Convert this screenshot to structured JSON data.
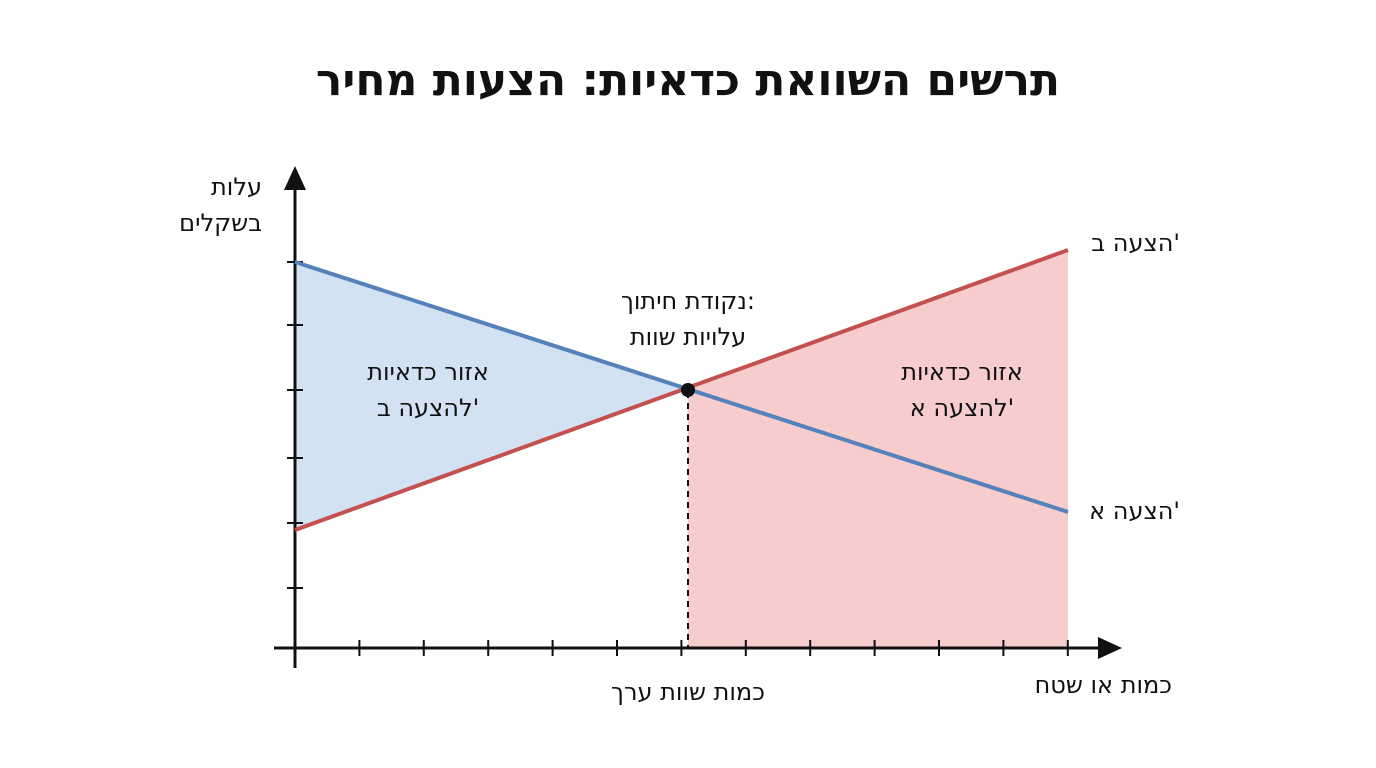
{
  "title": "תרשים השוואת כדאיות: הצעות מחיר",
  "y_axis_label": [
    "עלות",
    "בשקלים"
  ],
  "x_axis_label": "כמות או שטח",
  "lines": [
    {
      "label": "הצעה א'"
    },
    {
      "label": "הצעה ב'"
    }
  ],
  "intersection": {
    "label": [
      "נקודת חיתוך:",
      "עלויות שוות"
    ],
    "x_label": "כמות שוות ערך"
  },
  "regions": [
    {
      "label": [
        "אזור כדאיות",
        "להצעה ב'"
      ]
    },
    {
      "label": [
        "אזור כדאיות",
        "להצעה א'"
      ]
    }
  ]
}
